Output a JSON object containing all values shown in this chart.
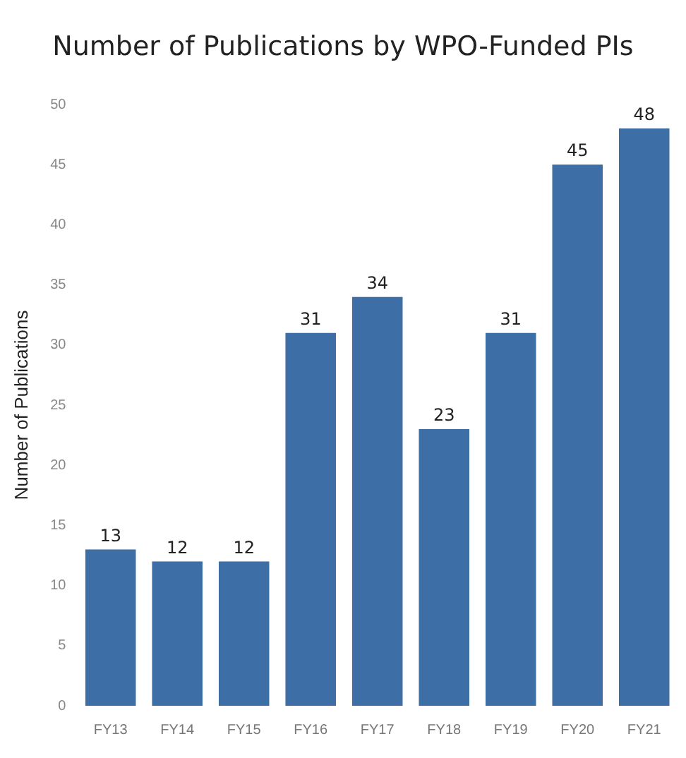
{
  "chart_data": {
    "type": "bar",
    "title": "Number of Publications by WPO-Funded PIs",
    "ylabel": "Number of Publications",
    "categories": [
      "FY13",
      "FY14",
      "FY15",
      "FY16",
      "FY17",
      "FY18",
      "FY19",
      "FY20",
      "FY21"
    ],
    "values": [
      13,
      12,
      12,
      31,
      34,
      23,
      31,
      45,
      48
    ],
    "color": "#3d6ea6",
    "ylim": [
      0,
      50
    ],
    "yticks": [
      0,
      5,
      10,
      15,
      20,
      25,
      30,
      35,
      40,
      45,
      50
    ],
    "grid": false,
    "data_labels": true
  }
}
